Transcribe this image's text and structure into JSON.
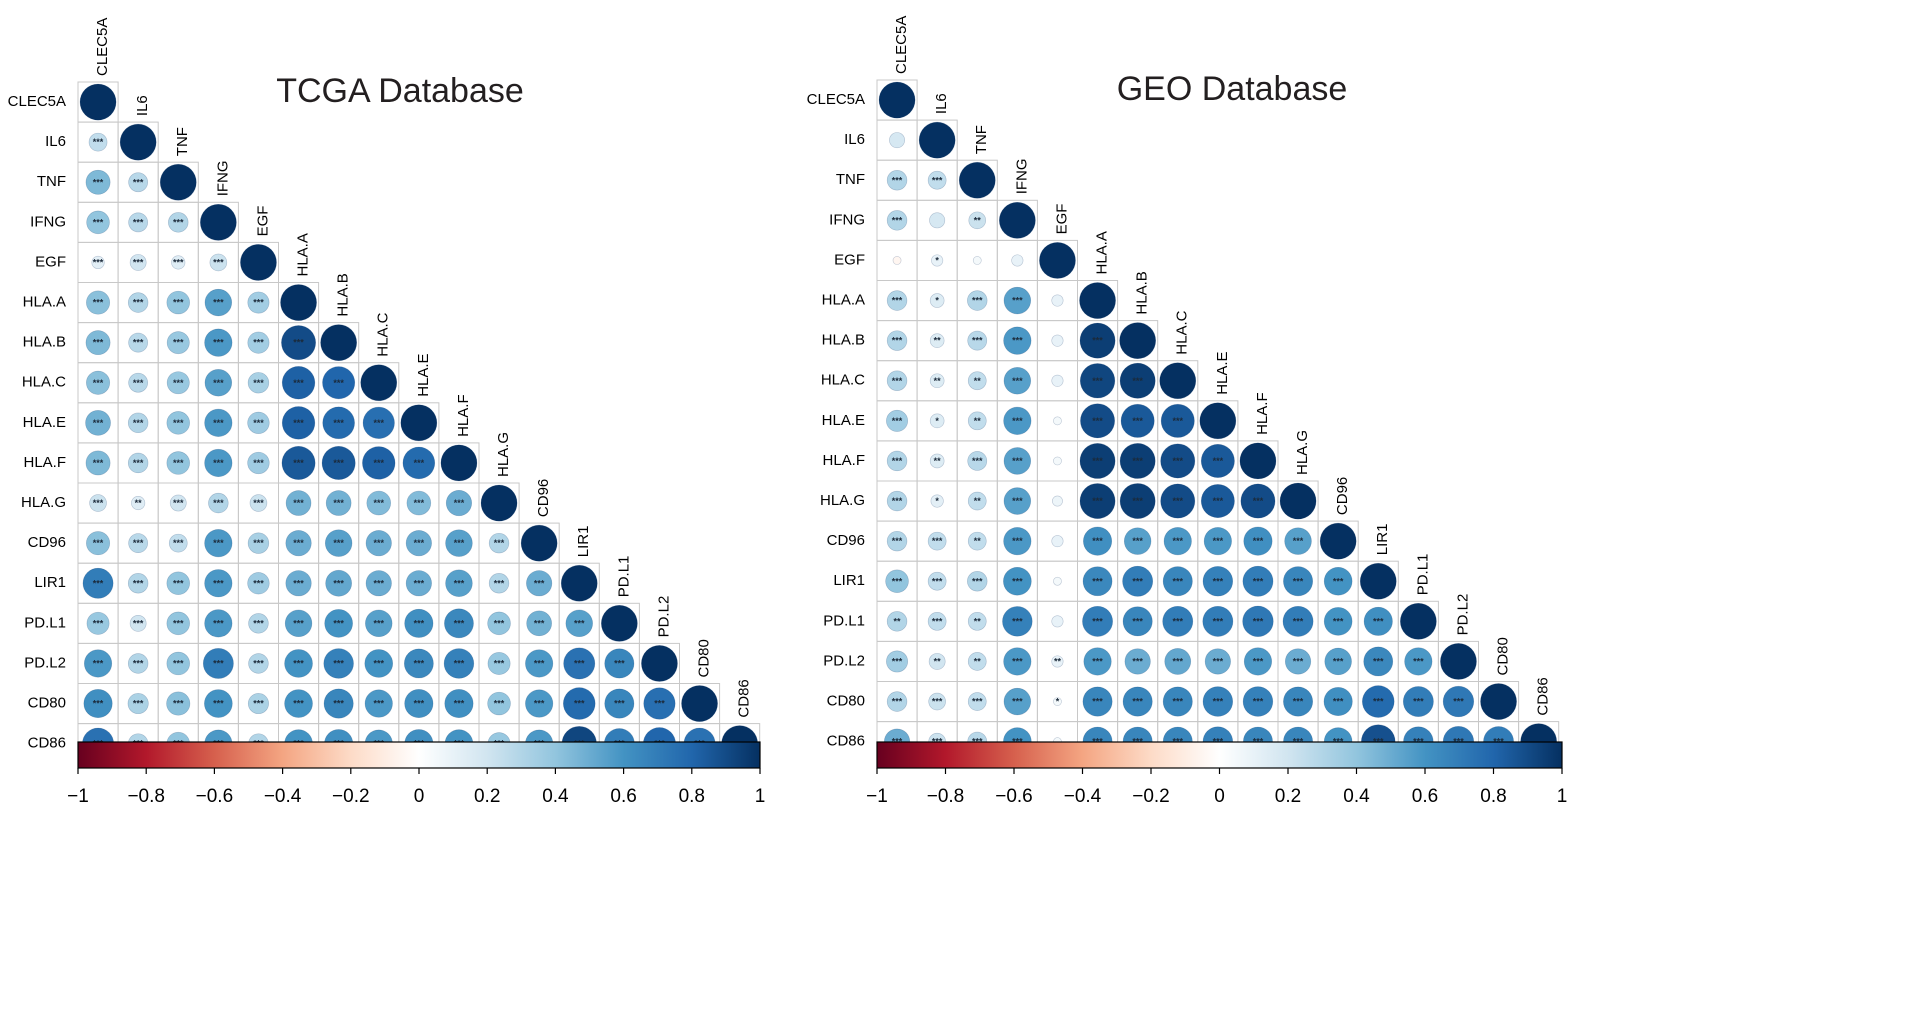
{
  "chart_data": [
    {
      "type": "heatmap",
      "title": "TCGA Database",
      "variables": [
        "CLEC5A",
        "IL6",
        "TNF",
        "IFNG",
        "EGF",
        "HLA.A",
        "HLA.B",
        "HLA.C",
        "HLA.E",
        "HLA.F",
        "HLA.G",
        "CD96",
        "LIR1",
        "PD.L1",
        "PD.L2",
        "CD80",
        "CD86"
      ],
      "matrix": [
        [
          1.0
        ],
        [
          0.25,
          1.0
        ],
        [
          0.45,
          0.28,
          1.0
        ],
        [
          0.4,
          0.28,
          0.3,
          1.0
        ],
        [
          0.12,
          0.2,
          0.14,
          0.22,
          1.0
        ],
        [
          0.42,
          0.3,
          0.4,
          0.55,
          0.35,
          1.0
        ],
        [
          0.45,
          0.28,
          0.38,
          0.58,
          0.35,
          0.9,
          1.0
        ],
        [
          0.42,
          0.28,
          0.38,
          0.55,
          0.33,
          0.82,
          0.8,
          1.0
        ],
        [
          0.48,
          0.3,
          0.4,
          0.58,
          0.36,
          0.82,
          0.78,
          0.76,
          1.0
        ],
        [
          0.45,
          0.3,
          0.4,
          0.58,
          0.36,
          0.85,
          0.85,
          0.82,
          0.78,
          1.0
        ],
        [
          0.22,
          0.14,
          0.2,
          0.3,
          0.22,
          0.48,
          0.48,
          0.44,
          0.44,
          0.5,
          1.0
        ],
        [
          0.42,
          0.28,
          0.25,
          0.58,
          0.33,
          0.5,
          0.55,
          0.5,
          0.5,
          0.55,
          0.3,
          1.0
        ],
        [
          0.7,
          0.3,
          0.4,
          0.58,
          0.36,
          0.5,
          0.52,
          0.5,
          0.5,
          0.55,
          0.3,
          0.5,
          1.0
        ],
        [
          0.38,
          0.2,
          0.4,
          0.58,
          0.3,
          0.55,
          0.6,
          0.55,
          0.62,
          0.65,
          0.4,
          0.48,
          0.55,
          1.0
        ],
        [
          0.58,
          0.3,
          0.4,
          0.7,
          0.3,
          0.6,
          0.68,
          0.6,
          0.65,
          0.68,
          0.38,
          0.58,
          0.75,
          0.66,
          1.0
        ],
        [
          0.62,
          0.32,
          0.42,
          0.6,
          0.32,
          0.6,
          0.66,
          0.58,
          0.62,
          0.62,
          0.4,
          0.58,
          0.78,
          0.66,
          0.76,
          1.0
        ],
        [
          0.75,
          0.3,
          0.4,
          0.58,
          0.3,
          0.6,
          0.62,
          0.58,
          0.62,
          0.6,
          0.38,
          0.58,
          0.92,
          0.7,
          0.8,
          0.75,
          1.0
        ]
      ],
      "significance": [
        [
          ""
        ],
        [
          "***",
          ""
        ],
        [
          "***",
          "***",
          ""
        ],
        [
          "***",
          "***",
          "***",
          ""
        ],
        [
          "***",
          "***",
          "***",
          "***",
          ""
        ],
        [
          "***",
          "***",
          "***",
          "***",
          "***",
          ""
        ],
        [
          "***",
          "***",
          "***",
          "***",
          "***",
          "***",
          ""
        ],
        [
          "***",
          "***",
          "***",
          "***",
          "***",
          "***",
          "***",
          ""
        ],
        [
          "***",
          "***",
          "***",
          "***",
          "***",
          "***",
          "***",
          "***",
          ""
        ],
        [
          "***",
          "***",
          "***",
          "***",
          "***",
          "***",
          "***",
          "***",
          "***",
          ""
        ],
        [
          "***",
          "**",
          "***",
          "***",
          "***",
          "***",
          "***",
          "***",
          "***",
          "***",
          ""
        ],
        [
          "***",
          "***",
          "***",
          "***",
          "***",
          "***",
          "***",
          "***",
          "***",
          "***",
          "***",
          ""
        ],
        [
          "***",
          "***",
          "***",
          "***",
          "***",
          "***",
          "***",
          "***",
          "***",
          "***",
          "***",
          "***",
          ""
        ],
        [
          "***",
          "***",
          "***",
          "***",
          "***",
          "***",
          "***",
          "***",
          "***",
          "***",
          "***",
          "***",
          "***",
          ""
        ],
        [
          "***",
          "***",
          "***",
          "***",
          "***",
          "***",
          "***",
          "***",
          "***",
          "***",
          "***",
          "***",
          "***",
          "***",
          ""
        ],
        [
          "***",
          "***",
          "***",
          "***",
          "***",
          "***",
          "***",
          "***",
          "***",
          "***",
          "***",
          "***",
          "***",
          "***",
          "***",
          ""
        ],
        [
          "***",
          "***",
          "***",
          "***",
          "***",
          "***",
          "***",
          "***",
          "***",
          "***",
          "***",
          "***",
          "***",
          "***",
          "***",
          "***",
          ""
        ]
      ],
      "colorbar": {
        "range": [
          -1,
          1
        ],
        "ticks": [
          "−1",
          "−0.8",
          "−0.6",
          "−0.4",
          "−0.2",
          "0",
          "0.2",
          "0.4",
          "0.6",
          "0.8",
          "1"
        ]
      }
    },
    {
      "type": "heatmap",
      "title": "GEO Database",
      "variables": [
        "CLEC5A",
        "IL6",
        "TNF",
        "IFNG",
        "EGF",
        "HLA.A",
        "HLA.B",
        "HLA.C",
        "HLA.E",
        "HLA.F",
        "HLA.G",
        "CD96",
        "LIR1",
        "PD.L1",
        "PD.L2",
        "CD80",
        "CD86"
      ],
      "matrix": [
        [
          1.0
        ],
        [
          0.18,
          1.0
        ],
        [
          0.3,
          0.25,
          1.0
        ],
        [
          0.3,
          0.18,
          0.22,
          1.0
        ],
        [
          -0.05,
          0.1,
          0.05,
          0.1,
          1.0
        ],
        [
          0.3,
          0.15,
          0.3,
          0.55,
          0.1,
          1.0
        ],
        [
          0.3,
          0.15,
          0.28,
          0.58,
          0.1,
          0.95,
          1.0
        ],
        [
          0.3,
          0.15,
          0.25,
          0.55,
          0.1,
          0.92,
          0.95,
          1.0
        ],
        [
          0.35,
          0.15,
          0.25,
          0.58,
          0.05,
          0.9,
          0.85,
          0.85,
          1.0
        ],
        [
          0.3,
          0.15,
          0.28,
          0.55,
          0.05,
          0.95,
          0.95,
          0.9,
          0.85,
          1.0
        ],
        [
          0.3,
          0.12,
          0.25,
          0.55,
          0.08,
          0.95,
          0.95,
          0.9,
          0.85,
          0.9,
          1.0
        ],
        [
          0.3,
          0.25,
          0.25,
          0.58,
          0.1,
          0.62,
          0.55,
          0.58,
          0.58,
          0.62,
          0.55,
          1.0
        ],
        [
          0.4,
          0.25,
          0.3,
          0.6,
          0.05,
          0.65,
          0.7,
          0.66,
          0.68,
          0.7,
          0.66,
          0.6,
          1.0
        ],
        [
          0.3,
          0.25,
          0.25,
          0.68,
          0.1,
          0.7,
          0.66,
          0.7,
          0.7,
          0.72,
          0.7,
          0.6,
          0.62,
          1.0
        ],
        [
          0.35,
          0.2,
          0.25,
          0.58,
          0.1,
          0.58,
          0.5,
          0.52,
          0.5,
          0.58,
          0.5,
          0.55,
          0.65,
          0.58,
          1.0
        ],
        [
          0.3,
          0.22,
          0.25,
          0.55,
          0.05,
          0.66,
          0.66,
          0.66,
          0.68,
          0.68,
          0.66,
          0.62,
          0.78,
          0.7,
          0.72,
          1.0
        ],
        [
          0.5,
          0.22,
          0.28,
          0.6,
          0.05,
          0.66,
          0.66,
          0.66,
          0.68,
          0.66,
          0.66,
          0.6,
          0.88,
          0.68,
          0.72,
          0.7,
          1.0
        ]
      ],
      "significance": [
        [
          ""
        ],
        [
          "",
          ""
        ],
        [
          "***",
          "***",
          ""
        ],
        [
          "***",
          "",
          "**",
          ""
        ],
        [
          "",
          "*",
          "",
          "",
          ""
        ],
        [
          "***",
          "*",
          "***",
          "***",
          "",
          ""
        ],
        [
          "***",
          "**",
          "***",
          "***",
          "",
          "***",
          ""
        ],
        [
          "***",
          "**",
          "**",
          "***",
          "",
          "***",
          "***",
          ""
        ],
        [
          "***",
          "*",
          "**",
          "***",
          "",
          "***",
          "***",
          "***",
          ""
        ],
        [
          "***",
          "**",
          "***",
          "***",
          "",
          "***",
          "***",
          "***",
          "***",
          ""
        ],
        [
          "***",
          "*",
          "**",
          "***",
          "",
          "***",
          "***",
          "***",
          "***",
          "***",
          ""
        ],
        [
          "***",
          "***",
          "**",
          "***",
          "",
          "***",
          "***",
          "***",
          "***",
          "***",
          "***",
          ""
        ],
        [
          "***",
          "***",
          "***",
          "***",
          "",
          "***",
          "***",
          "***",
          "***",
          "***",
          "***",
          "***",
          ""
        ],
        [
          "**",
          "***",
          "**",
          "***",
          "",
          "***",
          "***",
          "***",
          "***",
          "***",
          "***",
          "***",
          "***",
          ""
        ],
        [
          "***",
          "**",
          "**",
          "***",
          "**",
          "***",
          "***",
          "***",
          "***",
          "***",
          "***",
          "***",
          "***",
          "***",
          ""
        ],
        [
          "***",
          "***",
          "***",
          "***",
          "*",
          "***",
          "***",
          "***",
          "***",
          "***",
          "***",
          "***",
          "***",
          "***",
          "***",
          ""
        ],
        [
          "***",
          "***",
          "***",
          "***",
          "",
          "***",
          "***",
          "***",
          "***",
          "***",
          "***",
          "***",
          "***",
          "***",
          "***",
          "***",
          ""
        ]
      ],
      "colorbar": {
        "range": [
          -1,
          1
        ],
        "ticks": [
          "−1",
          "−0.8",
          "−0.6",
          "−0.4",
          "−0.2",
          "0",
          "0.2",
          "0.4",
          "0.6",
          "0.8",
          "1"
        ]
      }
    }
  ]
}
